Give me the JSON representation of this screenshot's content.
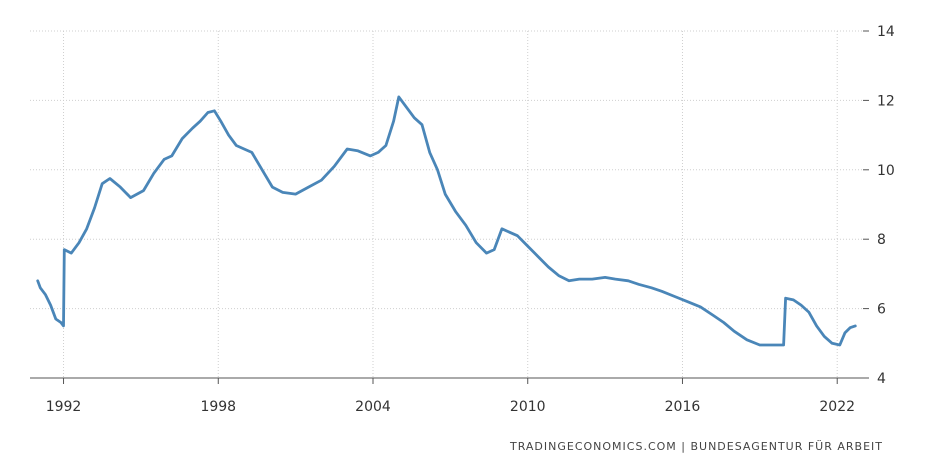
{
  "source_credit": "TRADINGECONOMICS.COM  |  BUNDESAGENTUR FÜR ARBEIT",
  "colors": {
    "line": "#4a86b8",
    "grid": "#cfcfcf",
    "axis": "#555555",
    "text": "#333333"
  },
  "chart_data": {
    "type": "line",
    "title": "",
    "xlabel": "",
    "ylabel": "",
    "xlim": [
      1990.7,
      2023.0
    ],
    "ylim": [
      4,
      14
    ],
    "x_ticks": [
      1992,
      1998,
      2004,
      2010,
      2016,
      2022
    ],
    "x_tick_labels": [
      "1992",
      "1998",
      "2004",
      "2010",
      "2016",
      "2022"
    ],
    "y_ticks": [
      4,
      6,
      8,
      10,
      12,
      14
    ],
    "y_tick_labels": [
      "4",
      "6",
      "8",
      "10",
      "12",
      "14"
    ],
    "y_axis_position": "right",
    "grid": true,
    "legend": "none",
    "series": [
      {
        "color": "#4a86b8",
        "x": [
          1991.0,
          1991.1,
          1991.3,
          1991.5,
          1991.7,
          1991.9,
          1992.0,
          1992.03,
          1992.3,
          1992.6,
          1992.9,
          1993.2,
          1993.5,
          1993.8,
          1994.2,
          1994.6,
          1995.1,
          1995.5,
          1995.9,
          1996.2,
          1996.6,
          1997.0,
          1997.3,
          1997.6,
          1997.85,
          1998.1,
          1998.4,
          1998.7,
          1999.0,
          1999.3,
          1999.7,
          2000.1,
          2000.5,
          2001.0,
          2001.5,
          2002.0,
          2002.5,
          2003.0,
          2003.4,
          2003.9,
          2004.2,
          2004.5,
          2004.8,
          2005.0,
          2005.1,
          2005.3,
          2005.6,
          2005.9,
          2006.2,
          2006.5,
          2006.8,
          2007.2,
          2007.6,
          2008.0,
          2008.4,
          2008.7,
          2009.0,
          2009.3,
          2009.6,
          2010.0,
          2010.4,
          2010.8,
          2011.2,
          2011.6,
          2012.0,
          2012.5,
          2013.0,
          2013.4,
          2013.9,
          2014.3,
          2014.8,
          2015.2,
          2015.7,
          2016.2,
          2016.7,
          2017.2,
          2017.6,
          2018.0,
          2018.5,
          2019.0,
          2019.5,
          2019.92,
          2020.0,
          2020.3,
          2020.6,
          2020.9,
          2021.2,
          2021.5,
          2021.8,
          2022.1,
          2022.3,
          2022.5,
          2022.7
        ],
        "y": [
          6.8,
          6.6,
          6.4,
          6.1,
          5.7,
          5.6,
          5.5,
          7.7,
          7.6,
          7.9,
          8.3,
          8.9,
          9.6,
          9.75,
          9.5,
          9.2,
          9.4,
          9.9,
          10.3,
          10.4,
          10.9,
          11.2,
          11.4,
          11.65,
          11.7,
          11.4,
          11.0,
          10.7,
          10.6,
          10.5,
          10.0,
          9.5,
          9.35,
          9.3,
          9.5,
          9.7,
          10.1,
          10.6,
          10.55,
          10.4,
          10.5,
          10.7,
          11.4,
          12.1,
          12.0,
          11.8,
          11.5,
          11.3,
          10.5,
          10.0,
          9.3,
          8.8,
          8.4,
          7.9,
          7.6,
          7.7,
          8.3,
          8.2,
          8.1,
          7.8,
          7.5,
          7.2,
          6.95,
          6.8,
          6.85,
          6.85,
          6.9,
          6.85,
          6.8,
          6.7,
          6.6,
          6.5,
          6.35,
          6.2,
          6.05,
          5.8,
          5.6,
          5.35,
          5.1,
          4.95,
          4.95,
          4.95,
          6.3,
          6.25,
          6.1,
          5.9,
          5.5,
          5.2,
          5.0,
          4.95,
          5.3,
          5.45,
          5.5
        ]
      }
    ]
  }
}
